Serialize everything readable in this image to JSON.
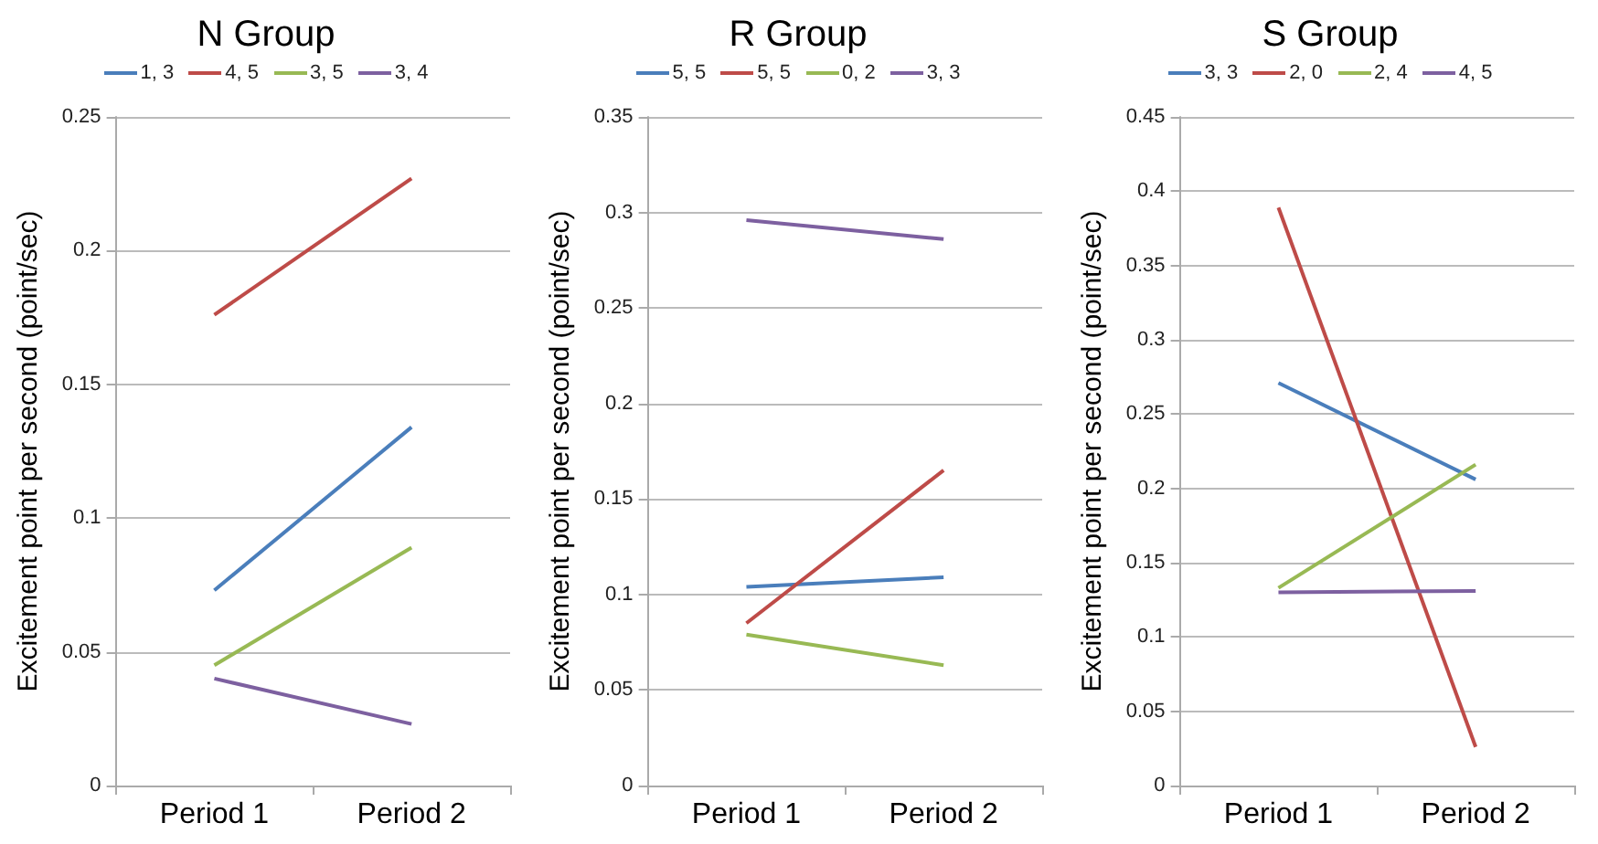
{
  "chart_data": [
    {
      "type": "line",
      "title": "N Group",
      "ylabel": "Excitement point per second (point/sec)",
      "categories": [
        "Period 1",
        "Period 2"
      ],
      "series": [
        {
          "name": "1, 3",
          "color": "#4a7ebb",
          "values": [
            0.073,
            0.134
          ]
        },
        {
          "name": "4, 5",
          "color": "#be4b48",
          "values": [
            0.176,
            0.227
          ]
        },
        {
          "name": "3, 5",
          "color": "#98b954",
          "values": [
            0.045,
            0.089
          ]
        },
        {
          "name": "3, 4",
          "color": "#7d60a0",
          "values": [
            0.04,
            0.023
          ]
        }
      ],
      "ylim": [
        0,
        0.25
      ],
      "yticks": [
        0,
        0.05,
        0.1,
        0.15,
        0.2,
        0.25
      ],
      "grid": "y",
      "legend": "top",
      "marker": "none"
    },
    {
      "type": "line",
      "title": "R Group",
      "ylabel": "Excitement point per second (point/sec)",
      "categories": [
        "Period 1",
        "Period 2"
      ],
      "series": [
        {
          "name": "5, 5",
          "color": "#4a7ebb",
          "values": [
            0.104,
            0.109
          ]
        },
        {
          "name": "5, 5",
          "color": "#be4b48",
          "values": [
            0.085,
            0.165
          ]
        },
        {
          "name": "0, 2",
          "color": "#98b954",
          "values": [
            0.079,
            0.063
          ]
        },
        {
          "name": "3, 3",
          "color": "#7d60a0",
          "values": [
            0.296,
            0.286
          ]
        }
      ],
      "ylim": [
        0,
        0.35
      ],
      "yticks": [
        0,
        0.05,
        0.1,
        0.15,
        0.2,
        0.25,
        0.3,
        0.35
      ],
      "grid": "y",
      "legend": "top",
      "marker": "none"
    },
    {
      "type": "line",
      "title": "S Group",
      "ylabel": "Excitement point per second (point/sec)",
      "categories": [
        "Period 1",
        "Period 2"
      ],
      "series": [
        {
          "name": "3, 3",
          "color": "#4a7ebb",
          "values": [
            0.271,
            0.206
          ]
        },
        {
          "name": "2, 0",
          "color": "#be4b48",
          "values": [
            0.389,
            0.026
          ]
        },
        {
          "name": "2, 4",
          "color": "#98b954",
          "values": [
            0.133,
            0.216
          ]
        },
        {
          "name": "4, 5",
          "color": "#7d60a0",
          "values": [
            0.13,
            0.131
          ]
        }
      ],
      "ylim": [
        0,
        0.45
      ],
      "yticks": [
        0,
        0.05,
        0.1,
        0.15,
        0.2,
        0.25,
        0.3,
        0.35,
        0.4,
        0.45
      ],
      "grid": "y",
      "legend": "top",
      "marker": "none"
    }
  ]
}
